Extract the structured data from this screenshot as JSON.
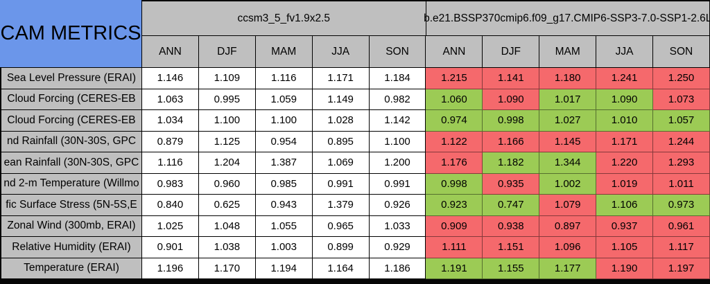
{
  "table": {
    "corner_label": "CAM METRICS",
    "groups": [
      {
        "name": "ccsm3_5_fv1.9x2.5",
        "seasons": [
          "ANN",
          "DJF",
          "MAM",
          "JJA",
          "SON"
        ]
      },
      {
        "name": "b.e21.BSSP370cmip6.f09_g17.CMIP6-SSP3-7.0-SSP1-2.6L",
        "seasons": [
          "ANN",
          "DJF",
          "MAM",
          "JJA",
          "SON"
        ]
      }
    ],
    "colors": {
      "cell_red": "#F5696C",
      "cell_green": "#9CCB55",
      "header_gray": "#BFBFBF",
      "corner_blue": "#6B96EA"
    },
    "rows": [
      {
        "label": "Sea Level Pressure (ERAI)",
        "g1": [
          "1.146",
          "1.109",
          "1.116",
          "1.171",
          "1.184"
        ],
        "g2": [
          "1.215",
          "1.141",
          "1.180",
          "1.241",
          "1.250"
        ],
        "g2c": [
          "r",
          "r",
          "r",
          "r",
          "r"
        ]
      },
      {
        "label": "Cloud Forcing (CERES-EB",
        "g1": [
          "1.063",
          "0.995",
          "1.059",
          "1.149",
          "0.982"
        ],
        "g2": [
          "1.060",
          "1.090",
          "1.017",
          "1.090",
          "1.073"
        ],
        "g2c": [
          "g",
          "r",
          "g",
          "g",
          "r"
        ]
      },
      {
        "label": "Cloud Forcing (CERES-EB",
        "g1": [
          "1.034",
          "1.100",
          "1.100",
          "1.028",
          "1.142"
        ],
        "g2": [
          "0.974",
          "0.998",
          "1.027",
          "1.010",
          "1.057"
        ],
        "g2c": [
          "g",
          "g",
          "g",
          "g",
          "g"
        ]
      },
      {
        "label": "nd Rainfall (30N-30S, GPC",
        "g1": [
          "0.879",
          "1.125",
          "0.954",
          "0.895",
          "1.100"
        ],
        "g2": [
          "1.122",
          "1.166",
          "1.145",
          "1.171",
          "1.244"
        ],
        "g2c": [
          "r",
          "r",
          "r",
          "r",
          "r"
        ]
      },
      {
        "label": "ean Rainfall (30N-30S, GPC",
        "g1": [
          "1.116",
          "1.204",
          "1.387",
          "1.069",
          "1.200"
        ],
        "g2": [
          "1.176",
          "1.182",
          "1.344",
          "1.220",
          "1.293"
        ],
        "g2c": [
          "r",
          "g",
          "g",
          "r",
          "r"
        ]
      },
      {
        "label": "nd 2-m Temperature (Willmo",
        "g1": [
          "0.983",
          "0.960",
          "0.985",
          "0.991",
          "0.991"
        ],
        "g2": [
          "0.998",
          "0.935",
          "1.002",
          "1.019",
          "1.011"
        ],
        "g2c": [
          "g",
          "r",
          "g",
          "r",
          "r"
        ]
      },
      {
        "label": "fic Surface Stress (5N-5S,E",
        "g1": [
          "0.840",
          "0.625",
          "0.943",
          "1.379",
          "0.926"
        ],
        "g2": [
          "0.923",
          "0.747",
          "1.079",
          "1.106",
          "0.973"
        ],
        "g2c": [
          "g",
          "g",
          "r",
          "g",
          "g"
        ]
      },
      {
        "label": "Zonal Wind (300mb, ERAI)",
        "g1": [
          "1.025",
          "1.048",
          "1.055",
          "0.965",
          "1.033"
        ],
        "g2": [
          "0.909",
          "0.938",
          "0.897",
          "0.937",
          "0.961"
        ],
        "g2c": [
          "r",
          "r",
          "r",
          "r",
          "r"
        ]
      },
      {
        "label": "Relative Humidity (ERAI)",
        "g1": [
          "0.901",
          "1.038",
          "1.003",
          "0.899",
          "0.929"
        ],
        "g2": [
          "1.111",
          "1.151",
          "1.096",
          "1.105",
          "1.117"
        ],
        "g2c": [
          "r",
          "r",
          "r",
          "r",
          "r"
        ]
      },
      {
        "label": "Temperature (ERAI)",
        "g1": [
          "1.196",
          "1.170",
          "1.194",
          "1.164",
          "1.186"
        ],
        "g2": [
          "1.191",
          "1.155",
          "1.177",
          "1.190",
          "1.197"
        ],
        "g2c": [
          "g",
          "g",
          "g",
          "r",
          "r"
        ]
      }
    ]
  },
  "chart_data": {
    "type": "table",
    "title": "CAM METRICS",
    "column_groups": [
      "ccsm3_5_fv1.9x2.5",
      "b.e21.BSSP370cmip6.f09_g17.CMIP6-SSP3-7.0-SSP1-2.6L"
    ],
    "columns": [
      "ANN",
      "DJF",
      "MAM",
      "JJA",
      "SON",
      "ANN",
      "DJF",
      "MAM",
      "JJA",
      "SON"
    ],
    "highlight_colors": {
      "red": "#F5696C",
      "green": "#9CCB55"
    },
    "rows": [
      {
        "metric": "Sea Level Pressure (ERAI)",
        "values": [
          1.146,
          1.109,
          1.116,
          1.171,
          1.184,
          1.215,
          1.141,
          1.18,
          1.241,
          1.25
        ],
        "cell_colors": [
          null,
          null,
          null,
          null,
          null,
          "red",
          "red",
          "red",
          "red",
          "red"
        ]
      },
      {
        "metric": "Cloud Forcing (CERES-EB",
        "values": [
          1.063,
          0.995,
          1.059,
          1.149,
          0.982,
          1.06,
          1.09,
          1.017,
          1.09,
          1.073
        ],
        "cell_colors": [
          null,
          null,
          null,
          null,
          null,
          "green",
          "red",
          "green",
          "green",
          "red"
        ]
      },
      {
        "metric": "Cloud Forcing (CERES-EB",
        "values": [
          1.034,
          1.1,
          1.1,
          1.028,
          1.142,
          0.974,
          0.998,
          1.027,
          1.01,
          1.057
        ],
        "cell_colors": [
          null,
          null,
          null,
          null,
          null,
          "green",
          "green",
          "green",
          "green",
          "green"
        ]
      },
      {
        "metric": "nd Rainfall (30N-30S, GPC",
        "values": [
          0.879,
          1.125,
          0.954,
          0.895,
          1.1,
          1.122,
          1.166,
          1.145,
          1.171,
          1.244
        ],
        "cell_colors": [
          null,
          null,
          null,
          null,
          null,
          "red",
          "red",
          "red",
          "red",
          "red"
        ]
      },
      {
        "metric": "ean Rainfall (30N-30S, GPC",
        "values": [
          1.116,
          1.204,
          1.387,
          1.069,
          1.2,
          1.176,
          1.182,
          1.344,
          1.22,
          1.293
        ],
        "cell_colors": [
          null,
          null,
          null,
          null,
          null,
          "red",
          "green",
          "green",
          "red",
          "red"
        ]
      },
      {
        "metric": "nd 2-m Temperature (Willmo",
        "values": [
          0.983,
          0.96,
          0.985,
          0.991,
          0.991,
          0.998,
          0.935,
          1.002,
          1.019,
          1.011
        ],
        "cell_colors": [
          null,
          null,
          null,
          null,
          null,
          "green",
          "red",
          "green",
          "red",
          "red"
        ]
      },
      {
        "metric": "fic Surface Stress (5N-5S,E",
        "values": [
          0.84,
          0.625,
          0.943,
          1.379,
          0.926,
          0.923,
          0.747,
          1.079,
          1.106,
          0.973
        ],
        "cell_colors": [
          null,
          null,
          null,
          null,
          null,
          "green",
          "green",
          "red",
          "green",
          "green"
        ]
      },
      {
        "metric": "Zonal Wind (300mb, ERAI)",
        "values": [
          1.025,
          1.048,
          1.055,
          0.965,
          1.033,
          0.909,
          0.938,
          0.897,
          0.937,
          0.961
        ],
        "cell_colors": [
          null,
          null,
          null,
          null,
          null,
          "red",
          "red",
          "red",
          "red",
          "red"
        ]
      },
      {
        "metric": "Relative Humidity (ERAI)",
        "values": [
          0.901,
          1.038,
          1.003,
          0.899,
          0.929,
          1.111,
          1.151,
          1.096,
          1.105,
          1.117
        ],
        "cell_colors": [
          null,
          null,
          null,
          null,
          null,
          "red",
          "red",
          "red",
          "red",
          "red"
        ]
      },
      {
        "metric": "Temperature (ERAI)",
        "values": [
          1.196,
          1.17,
          1.194,
          1.164,
          1.186,
          1.191,
          1.155,
          1.177,
          1.19,
          1.197
        ],
        "cell_colors": [
          null,
          null,
          null,
          null,
          null,
          "green",
          "green",
          "green",
          "red",
          "red"
        ]
      }
    ]
  }
}
